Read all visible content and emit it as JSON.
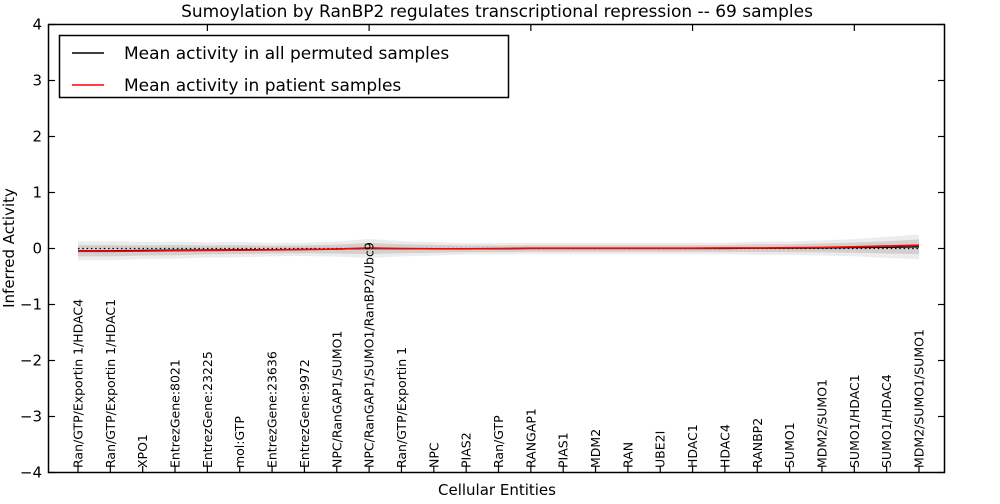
{
  "chart_data": {
    "type": "line",
    "title": "Sumoylation by RanBP2 regulates transcriptional repression -- 69 samples",
    "xlabel": "Cellular Entities",
    "ylabel": "Inferred Activity",
    "ylim": [
      -4,
      4
    ],
    "yticks": [
      4,
      3,
      2,
      1,
      0,
      -1,
      -2,
      -3,
      -4
    ],
    "grid": false,
    "legend_position": "upper left",
    "categories": [
      "Ran/GTP/Exportin 1/HDAC4",
      "Ran/GTP/Exportin 1/HDAC1",
      "XPO1",
      "EntrezGene:8021",
      "EntrezGene:23225",
      "mol:GTP",
      "EntrezGene:23636",
      "EntrezGene:9972",
      "NPC/RanGAP1/SUMO1",
      "NPC/RanGAP1/SUMO1/RanBP2/Ubc9",
      "Ran/GTP/Exportin 1",
      "NPC",
      "PIAS2",
      "Ran/GTP",
      "RANGAP1",
      "PIAS1",
      "MDM2",
      "RAN",
      "UBE2I",
      "HDAC1",
      "HDAC4",
      "RANBP2",
      "SUMO1",
      "MDM2/SUMO1",
      "SUMO1/HDAC1",
      "SUMO1/HDAC4",
      "MDM2/SUMO1/SUMO1"
    ],
    "series": [
      {
        "name": "Mean activity in all permuted samples",
        "color": "#000000",
        "values": [
          -0.04,
          -0.04,
          -0.035,
          -0.03,
          -0.025,
          -0.02,
          -0.02,
          -0.015,
          -0.01,
          0.0,
          -0.005,
          -0.005,
          -0.005,
          -0.005,
          0.0,
          0.0,
          0.0,
          0.0,
          0.0,
          0.0,
          0.0,
          0.005,
          0.005,
          0.01,
          0.015,
          0.02,
          0.03
        ]
      },
      {
        "name": "Mean activity in patient samples",
        "color": "#ff0000",
        "values": [
          -0.05,
          -0.05,
          -0.045,
          -0.04,
          -0.035,
          -0.03,
          -0.025,
          -0.02,
          -0.01,
          0.01,
          0.0,
          -0.005,
          -0.005,
          0.0,
          0.005,
          0.005,
          0.005,
          0.005,
          0.005,
          0.005,
          0.01,
          0.01,
          0.015,
          0.02,
          0.03,
          0.045,
          0.06
        ]
      }
    ],
    "zero_line": {
      "value": 0,
      "style": "dotted",
      "color": "#000000"
    },
    "band": {
      "label": "spread of permuted sample activity",
      "halfwidth": [
        0.1,
        0.1,
        0.09,
        0.09,
        0.08,
        0.08,
        0.07,
        0.07,
        0.08,
        0.1,
        0.08,
        0.07,
        0.06,
        0.06,
        0.06,
        0.06,
        0.06,
        0.06,
        0.06,
        0.06,
        0.06,
        0.07,
        0.07,
        0.08,
        0.09,
        0.11,
        0.13
      ],
      "inner_color": "#c8c8c8",
      "outer_color": "#e2e2e2"
    }
  }
}
